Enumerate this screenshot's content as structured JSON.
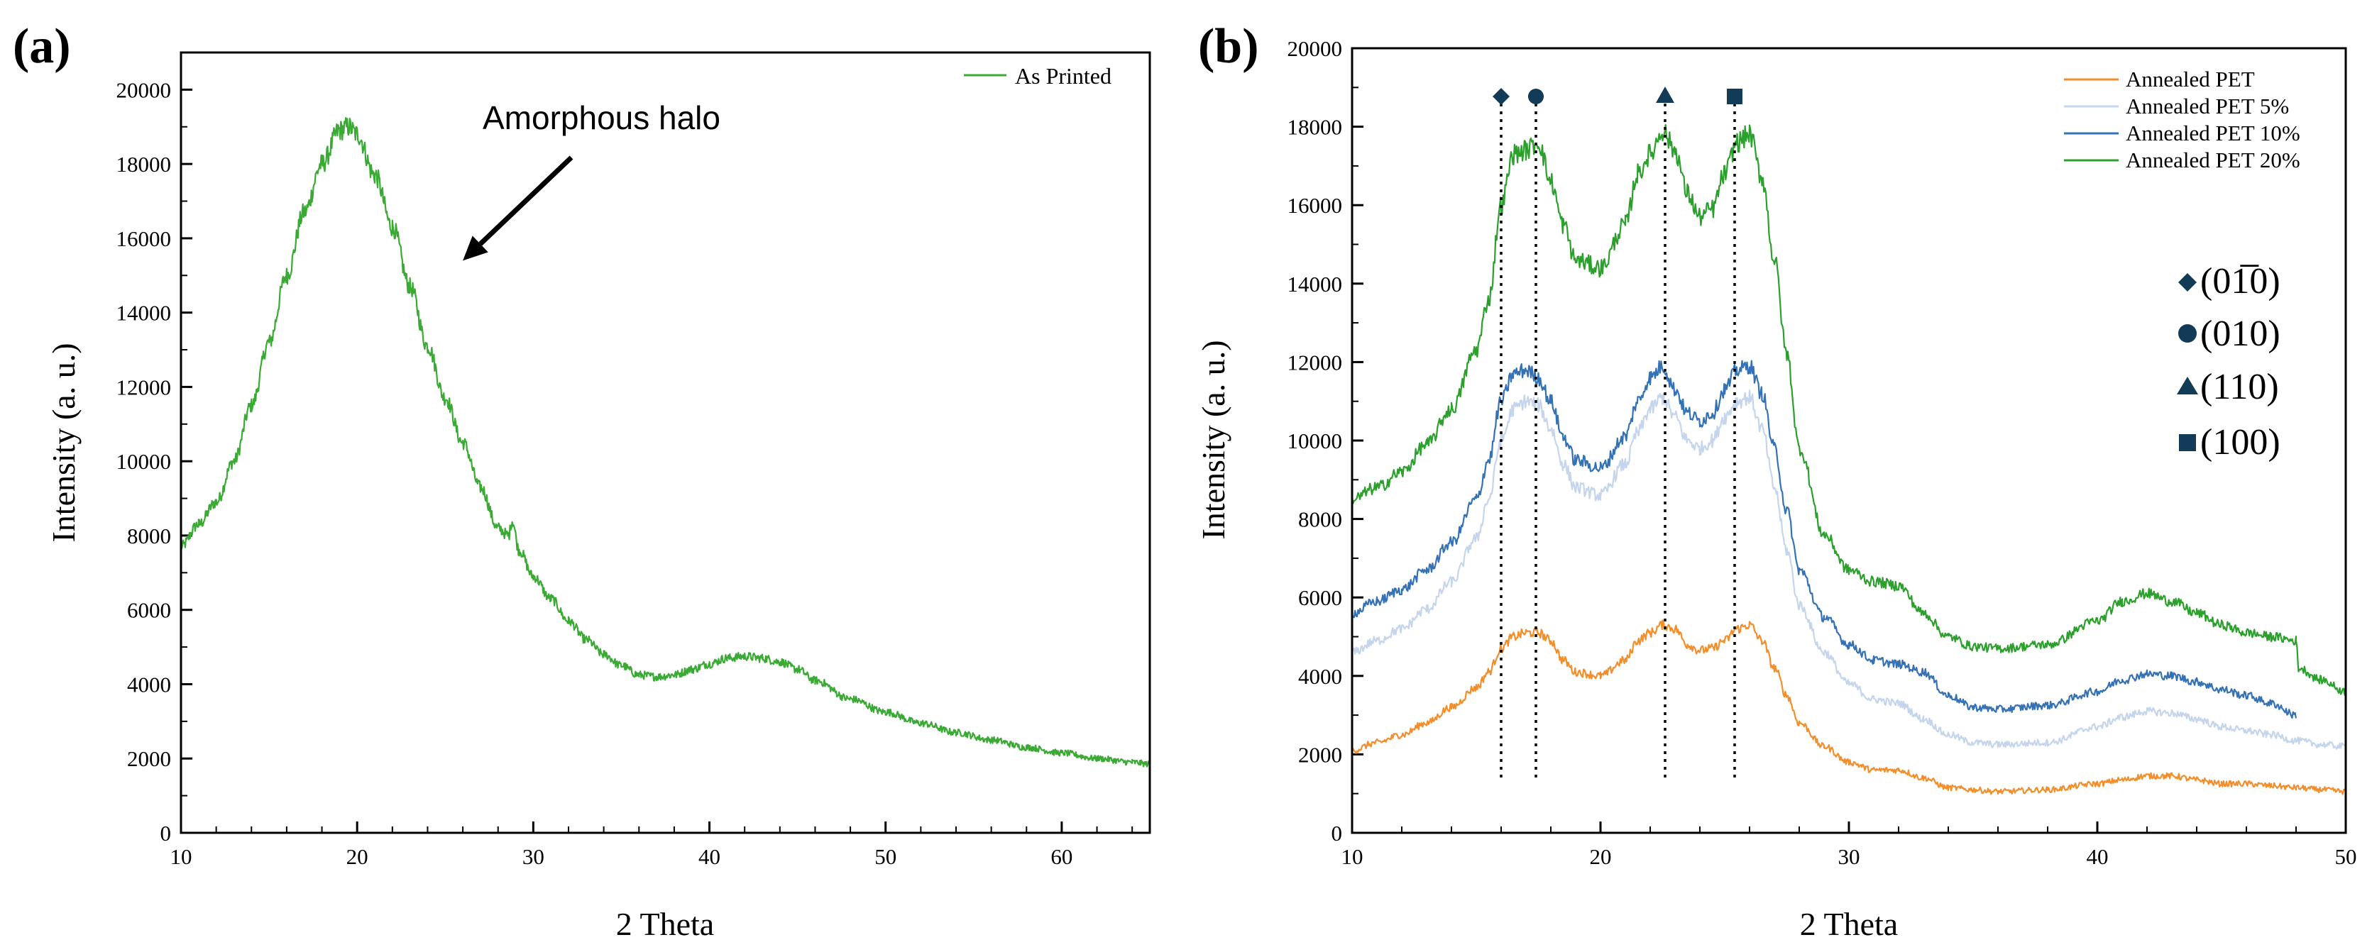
{
  "chart_data": [
    {
      "panel": "(a)",
      "type": "line",
      "title": "",
      "xlabel": "2 Theta",
      "ylabel": "Intensity (a. u.)",
      "xlim": [
        10,
        65
      ],
      "ylim": [
        0,
        21000
      ],
      "xticks": [
        10,
        20,
        30,
        40,
        50,
        60
      ],
      "yticks": [
        0,
        2000,
        4000,
        6000,
        8000,
        10000,
        12000,
        14000,
        16000,
        18000,
        20000
      ],
      "grid": false,
      "legend_position": "top-right",
      "annotation": {
        "text": "Amorphous halo",
        "arrow_to": {
          "x": 26,
          "y": 15400
        }
      },
      "series": [
        {
          "name": "As Printed",
          "color": "#3aaa35",
          "x": [
            10,
            11,
            12,
            13,
            14,
            15,
            16,
            17,
            18,
            19,
            19.5,
            20,
            21,
            22,
            23,
            24,
            25,
            26,
            27,
            28,
            28.6,
            28.8,
            29.2,
            30,
            31,
            32,
            33,
            34,
            35,
            36,
            37,
            38,
            39,
            40,
            41,
            42,
            43,
            44,
            45,
            46,
            48,
            50,
            52,
            54,
            56,
            58,
            60,
            62,
            64,
            65
          ],
          "y": [
            7700,
            8300,
            8900,
            10000,
            11500,
            13200,
            15000,
            16700,
            18000,
            18900,
            19000,
            18800,
            17700,
            16300,
            14700,
            13100,
            11700,
            10500,
            9300,
            8200,
            8000,
            8400,
            7600,
            6900,
            6300,
            5700,
            5200,
            4800,
            4500,
            4250,
            4200,
            4250,
            4400,
            4550,
            4700,
            4750,
            4700,
            4600,
            4400,
            4100,
            3600,
            3250,
            2950,
            2700,
            2500,
            2300,
            2150,
            2000,
            1900,
            1850
          ]
        }
      ]
    },
    {
      "panel": "(b)",
      "type": "line",
      "title": "",
      "xlabel": "2 Theta",
      "ylabel": "Intensity (a. u.)",
      "xlim": [
        10,
        50
      ],
      "ylim": [
        0,
        20000
      ],
      "xticks": [
        10,
        20,
        30,
        40,
        50
      ],
      "yticks": [
        0,
        2000,
        4000,
        6000,
        8000,
        10000,
        12000,
        14000,
        16000,
        18000,
        20000
      ],
      "grid": false,
      "legend_position": "top-right",
      "series": [
        {
          "name": "Annealed PET",
          "color": "#f28e2b",
          "x": [
            10,
            11,
            12,
            13,
            14,
            15,
            15.5,
            16,
            16.5,
            17,
            17.5,
            18,
            18.5,
            19,
            20,
            21,
            21.5,
            22,
            22.5,
            23,
            23.5,
            24,
            24.5,
            25,
            25.5,
            26,
            26.5,
            27,
            27.5,
            28,
            29,
            30,
            31,
            32,
            33,
            34,
            35,
            36,
            38,
            40,
            41,
            42,
            43,
            44,
            45,
            46,
            47,
            48,
            49,
            50
          ],
          "y": [
            2100,
            2300,
            2500,
            2800,
            3200,
            3700,
            4100,
            4700,
            5000,
            5100,
            5100,
            4900,
            4400,
            4100,
            4000,
            4400,
            4900,
            5100,
            5300,
            5200,
            4800,
            4650,
            4700,
            4900,
            5200,
            5300,
            4900,
            4200,
            3500,
            2800,
            2200,
            1800,
            1600,
            1600,
            1400,
            1150,
            1100,
            1050,
            1100,
            1250,
            1350,
            1450,
            1450,
            1350,
            1250,
            1250,
            1200,
            1150,
            1100,
            1050
          ]
        },
        {
          "name": "Annealed PET 5%",
          "color": "#c5d5ec",
          "x": [
            10,
            11,
            12,
            13,
            14,
            15,
            15.5,
            16,
            16.5,
            17,
            17.5,
            18,
            18.5,
            19,
            20,
            21,
            21.5,
            22,
            22.5,
            23,
            23.5,
            24,
            24.5,
            25,
            25.5,
            26,
            26.5,
            27,
            27.5,
            28,
            29,
            30,
            31,
            32,
            33,
            34,
            35,
            36,
            38,
            40,
            41,
            42,
            43,
            44,
            45,
            46,
            47,
            48,
            49,
            50
          ],
          "y": [
            4600,
            4900,
            5200,
            5700,
            6400,
            7500,
            8500,
            10000,
            10800,
            11000,
            10900,
            10300,
            9400,
            8800,
            8600,
            9400,
            10200,
            10800,
            11100,
            10600,
            10000,
            9800,
            10000,
            10600,
            11000,
            11100,
            10300,
            8800,
            7200,
            5800,
            4600,
            3800,
            3400,
            3300,
            2900,
            2500,
            2300,
            2250,
            2300,
            2700,
            2950,
            3100,
            3050,
            2900,
            2700,
            2600,
            2500,
            2350,
            2250,
            2200
          ]
        },
        {
          "name": "Annealed PET 10%",
          "color": "#3572b5",
          "x": [
            10,
            11,
            12,
            13,
            14,
            15,
            15.5,
            16,
            16.5,
            17,
            17.5,
            18,
            18.5,
            19,
            20,
            21,
            21.5,
            22,
            22.5,
            23,
            23.5,
            24,
            24.5,
            25,
            25.5,
            26,
            26.5,
            27,
            27.5,
            28,
            29,
            30,
            31,
            32,
            33,
            34,
            35,
            36,
            38,
            40,
            41,
            42,
            43,
            44,
            45,
            46,
            47,
            48
          ],
          "y": [
            5600,
            5900,
            6200,
            6700,
            7400,
            8500,
            9500,
            11000,
            11700,
            11800,
            11600,
            11000,
            10100,
            9500,
            9300,
            10100,
            11000,
            11600,
            11900,
            11300,
            10700,
            10500,
            10700,
            11300,
            11800,
            11900,
            11200,
            9800,
            8200,
            6700,
            5500,
            4800,
            4400,
            4300,
            4100,
            3500,
            3200,
            3150,
            3250,
            3600,
            3900,
            4050,
            4000,
            3850,
            3650,
            3500,
            3300,
            3000
          ]
        },
        {
          "name": "Annealed PET 20%",
          "color": "#2ca02c",
          "x": [
            10,
            11,
            12,
            13,
            14,
            15,
            15.5,
            16,
            16.5,
            17,
            17.5,
            18,
            18.5,
            19,
            20,
            21,
            21.5,
            22,
            22.5,
            23,
            23.5,
            24,
            24.5,
            25,
            25.5,
            26,
            26.5,
            27,
            27.5,
            28,
            29,
            30,
            31,
            32,
            33,
            34,
            35,
            36,
            38,
            40,
            41,
            42,
            43,
            44,
            45,
            46,
            47,
            48,
            48.1,
            49,
            50
          ],
          "y": [
            8500,
            8800,
            9200,
            9900,
            10800,
            12300,
            13600,
            16000,
            17300,
            17400,
            17600,
            16600,
            15500,
            14600,
            14400,
            15500,
            16800,
            17300,
            17900,
            17400,
            16300,
            15700,
            15900,
            16800,
            17600,
            17800,
            16700,
            14600,
            12200,
            9800,
            7600,
            6700,
            6400,
            6300,
            5600,
            5000,
            4750,
            4700,
            4800,
            5400,
            5900,
            6100,
            5900,
            5600,
            5300,
            5100,
            5000,
            4900,
            4200,
            3900,
            3600
          ]
        }
      ],
      "reference_lines": [
        {
          "x": 16.0,
          "marker": "diamond",
          "plane": "(01̅0)"
        },
        {
          "x": 17.4,
          "marker": "circle",
          "plane": "(010)"
        },
        {
          "x": 22.6,
          "marker": "triangle",
          "plane": "(110)"
        },
        {
          "x": 25.4,
          "marker": "square",
          "plane": "(100)"
        }
      ],
      "marker_color": "#123b57",
      "plane_legend": [
        {
          "marker": "diamond",
          "label": "(01̅0)"
        },
        {
          "marker": "circle",
          "label": "(010)"
        },
        {
          "marker": "triangle",
          "label": "(110)"
        },
        {
          "marker": "square",
          "label": "(100)"
        }
      ]
    }
  ]
}
